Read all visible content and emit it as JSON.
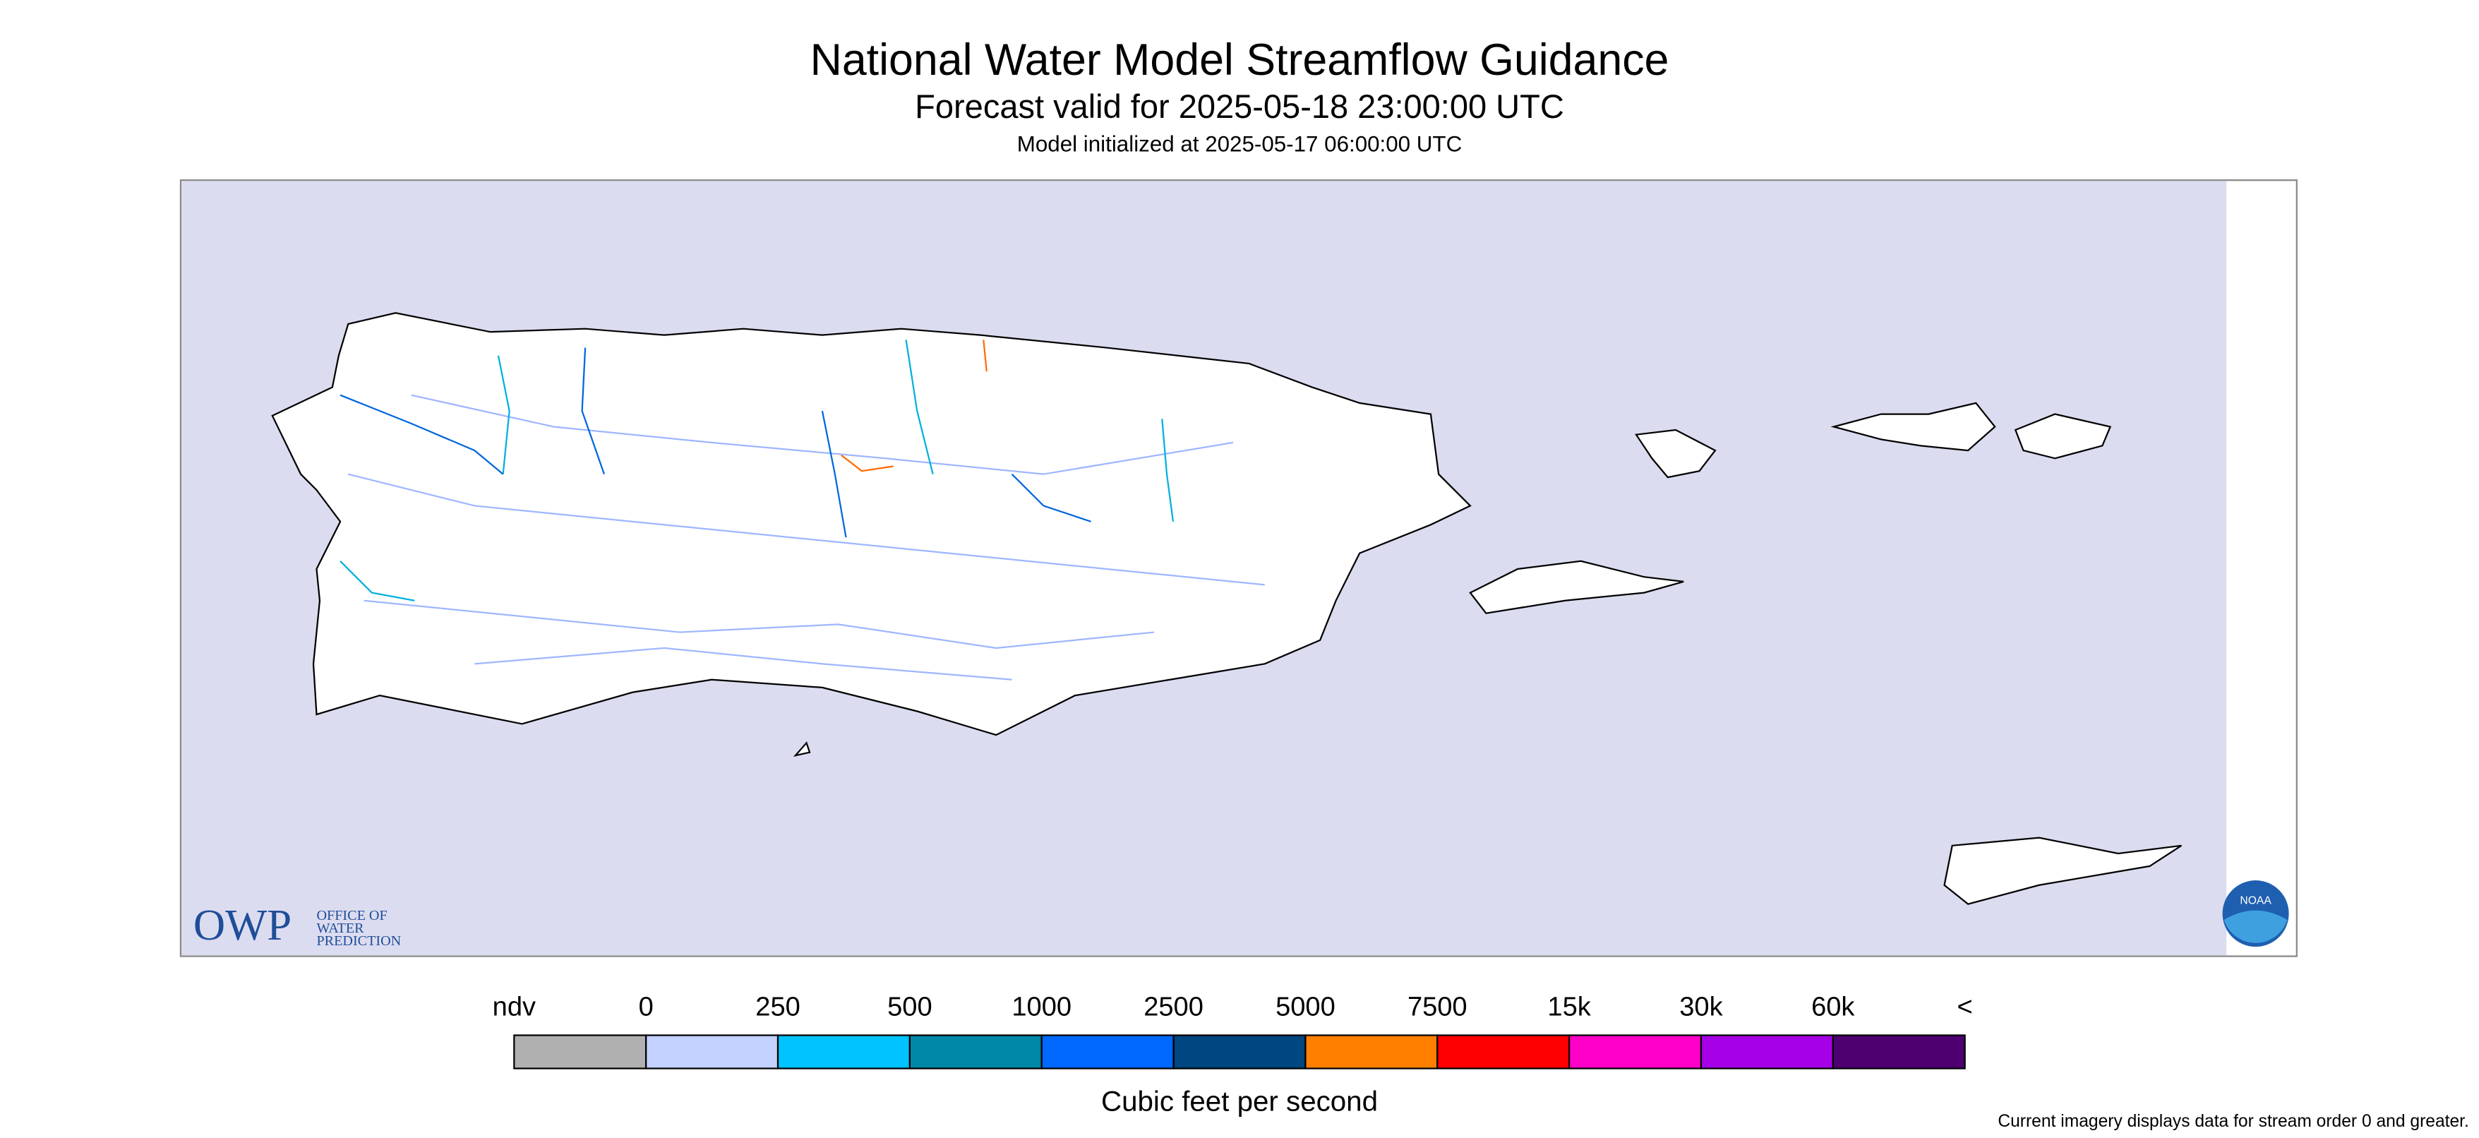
{
  "header": {
    "title": "National Water Model Streamflow Guidance",
    "subtitle": "Forecast valid for 2025-05-18 23:00:00 UTC",
    "initialized": "Model initialized at 2025-05-17 06:00:00 UTC"
  },
  "logos": {
    "owp": "OWP",
    "owp_lines": [
      "OFFICE OF",
      "WATER",
      "PREDICTION"
    ],
    "noaa": "NOAA"
  },
  "legend": {
    "labels": [
      "ndv",
      "0",
      "250",
      "500",
      "1000",
      "2500",
      "5000",
      "7500",
      "15k",
      "30k",
      "60k",
      "<"
    ],
    "colors": [
      "#b0b0b0",
      "#c2d1ff",
      "#00c3ff",
      "#0088a8",
      "#0068ff",
      "#004680",
      "#ff8000",
      "#ff0000",
      "#ff00c8",
      "#a600e6",
      "#4e0070"
    ],
    "unit": "Cubic feet per second"
  },
  "footnote": "Current imagery displays data for stream order 0 and greater."
}
